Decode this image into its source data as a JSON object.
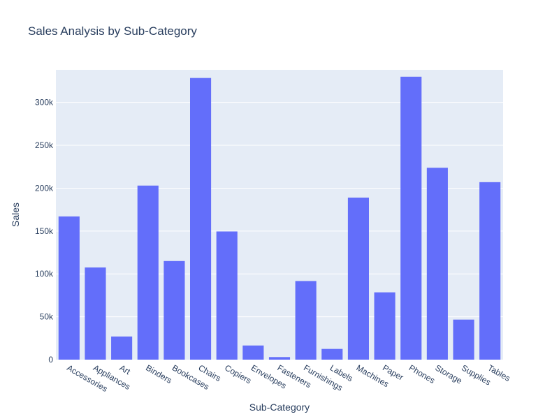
{
  "colors": {
    "bar": "#636efa",
    "plot_bg": "#e5ecf6",
    "grid": "#ffffff",
    "text": "#2a3f5f"
  },
  "chart_data": {
    "type": "bar",
    "title": "Sales Analysis by Sub-Category",
    "xlabel": "Sub-Category",
    "ylabel": "Sales",
    "ylim": [
      0,
      338000
    ],
    "grid": true,
    "yticks": [
      0,
      50000,
      100000,
      150000,
      200000,
      250000,
      300000
    ],
    "ytick_labels": [
      "0",
      "50k",
      "100k",
      "150k",
      "200k",
      "250k",
      "300k"
    ],
    "categories": [
      "Accessories",
      "Appliances",
      "Art",
      "Binders",
      "Bookcases",
      "Chairs",
      "Copiers",
      "Envelopes",
      "Fasteners",
      "Furnishings",
      "Labels",
      "Machines",
      "Paper",
      "Phones",
      "Storage",
      "Supplies",
      "Tables"
    ],
    "values": [
      167000,
      107500,
      27000,
      203000,
      115000,
      328500,
      149500,
      16500,
      3000,
      91700,
      12500,
      189000,
      78500,
      330000,
      223800,
      46700,
      207000
    ]
  }
}
